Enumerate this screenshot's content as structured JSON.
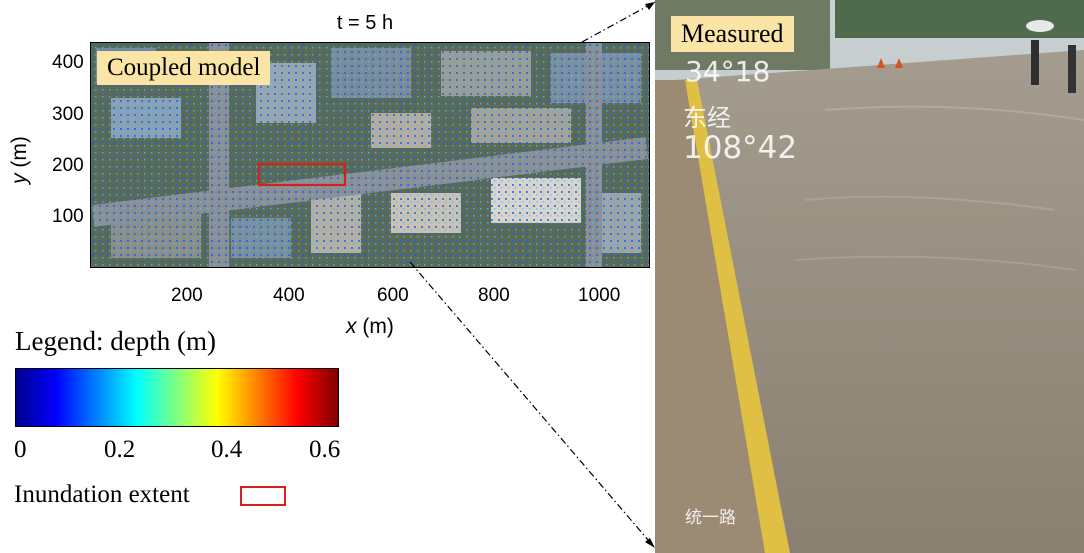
{
  "title": "t = 5 h",
  "map_panel": {
    "label": "Coupled  model",
    "ylabel_var": "y",
    "ylabel_unit": " (m)",
    "xlabel_var": "x",
    "xlabel_unit": " (m)",
    "yticks": [
      "400",
      "300",
      "200",
      "100"
    ],
    "xticks": [
      "200",
      "400",
      "600",
      "800",
      "1000"
    ]
  },
  "legend": {
    "title": "Legend: depth (m)",
    "ticks": [
      "0",
      "0.2",
      "0.4",
      "0.6"
    ],
    "colormap": [
      "#00008f",
      "#0000ff",
      "#0080ff",
      "#00ffff",
      "#80ff80",
      "#ffff00",
      "#ff8000",
      "#ff0000",
      "#800000"
    ],
    "inundation_label": "Inundation extent",
    "inundation_color": "#d62020"
  },
  "photo_panel": {
    "label": "Measured",
    "overlay_lat": "34°18",
    "overlay_east": "东经",
    "overlay_lon": "108°42",
    "overlay_road": "统一路"
  },
  "colors": {
    "label_bg": "#fbe5a6",
    "water": "#8f8576",
    "curb": "#e4c24a"
  }
}
